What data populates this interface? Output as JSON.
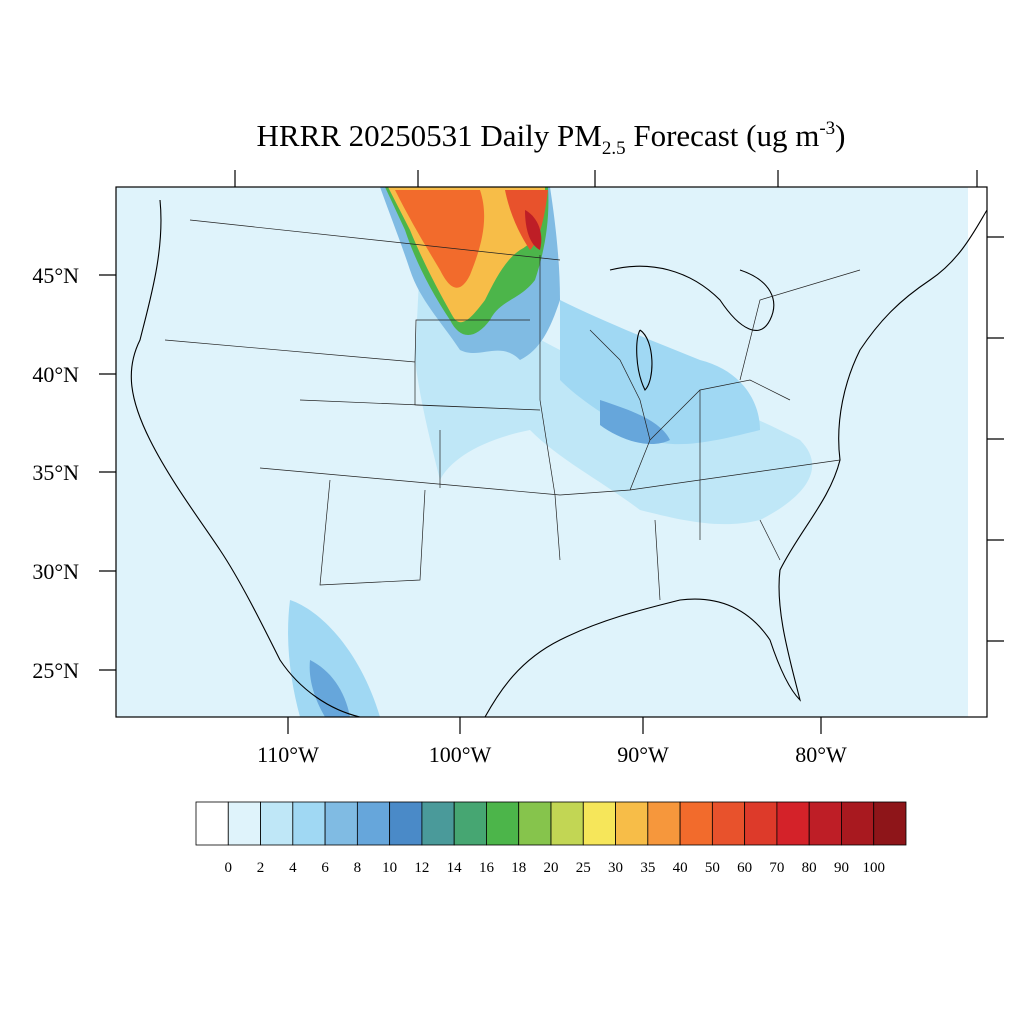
{
  "title": {
    "main": "HRRR 20250531 Daily PM",
    "subscript": "2.5",
    "middle": " Forecast (ug m",
    "superscript": "-3",
    "end": ")"
  },
  "map": {
    "lat_labels": [
      "45°N",
      "40°N",
      "35°N",
      "30°N",
      "25°N"
    ],
    "lon_labels": [
      "110°W",
      "100°W",
      "90°W",
      "80°W"
    ]
  },
  "colorbar": {
    "levels": [
      0,
      2,
      4,
      6,
      8,
      10,
      12,
      14,
      16,
      18,
      20,
      25,
      30,
      35,
      40,
      50,
      60,
      70,
      80,
      90,
      100
    ],
    "colors": [
      "#ffffff",
      "#dff3fb",
      "#bfe7f7",
      "#a0d8f3",
      "#80bbe3",
      "#66a6db",
      "#4a8ac8",
      "#4a9a9a",
      "#46a672",
      "#4cb54a",
      "#86c44c",
      "#c2d654",
      "#f6e65a",
      "#f7bd48",
      "#f6973c",
      "#f26b2c",
      "#e8522c",
      "#dd3a2a",
      "#d42229",
      "#be1e26",
      "#a8191f",
      "#8e1519"
    ]
  }
}
